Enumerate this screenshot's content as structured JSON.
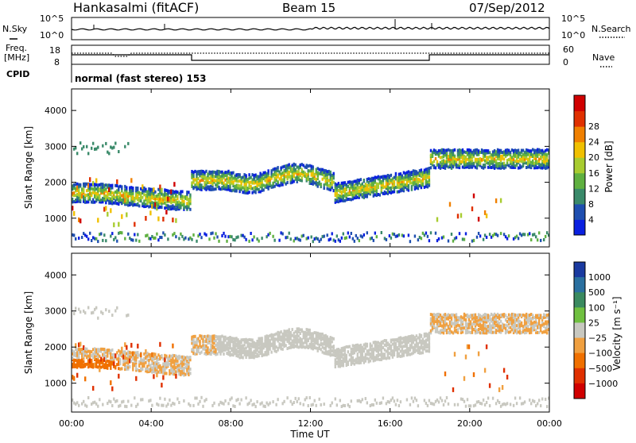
{
  "header": {
    "station": "Hankasalmi (fitACF)",
    "beam": "Beam 15",
    "date": "07/Sep/2012"
  },
  "noise_panel": {
    "left_label": "N.Sky",
    "right_label": "N.Search",
    "left_ticks": [
      "10^5",
      "10^0"
    ],
    "right_ticks": [
      "10^5",
      "10^0"
    ]
  },
  "freq_panel": {
    "left_label_line1": "Freq.",
    "left_label_line2": "[MHz]",
    "left_ticks": [
      "18",
      "8"
    ],
    "right_label": "Nave",
    "right_ticks": [
      "60",
      "0"
    ],
    "cpid_label": "CPID",
    "cpid_text": "normal (fast stereo) 153"
  },
  "chart_data": [
    {
      "type": "heatmap",
      "name": "power",
      "ylabel": "Slant Range [km]",
      "y_ticks": [
        "1000",
        "2000",
        "3000",
        "4000"
      ],
      "ylim": [
        200,
        4600
      ],
      "colorbar": {
        "label": "Power [dB]",
        "ticks": [
          "4",
          "8",
          "12",
          "16",
          "20",
          "24",
          "28"
        ],
        "colors": [
          "#0a20e0",
          "#1f4fb0",
          "#3a8a6a",
          "#5fb040",
          "#a8cc30",
          "#f0c000",
          "#f08000",
          "#e03000",
          "#d00000"
        ]
      }
    },
    {
      "type": "heatmap",
      "name": "velocity",
      "ylabel": "Slant Range [km]",
      "y_ticks": [
        "1000",
        "2000",
        "3000",
        "4000"
      ],
      "ylim": [
        200,
        4600
      ],
      "colorbar": {
        "label": "Velocity [m s⁻¹]",
        "ticks": [
          "1000",
          "500",
          "100",
          "25",
          "−25",
          "−100",
          "−500",
          "−1000"
        ],
        "colors": [
          "#1a3aa0",
          "#2a70a0",
          "#3a8a60",
          "#70c040",
          "#c8c8c0",
          "#f0a040",
          "#f07000",
          "#e03000",
          "#d00000"
        ]
      }
    }
  ],
  "x_axis": {
    "label": "Time UT",
    "ticks": [
      "00:00",
      "04:00",
      "08:00",
      "12:00",
      "16:00",
      "20:00",
      "00:00"
    ]
  }
}
